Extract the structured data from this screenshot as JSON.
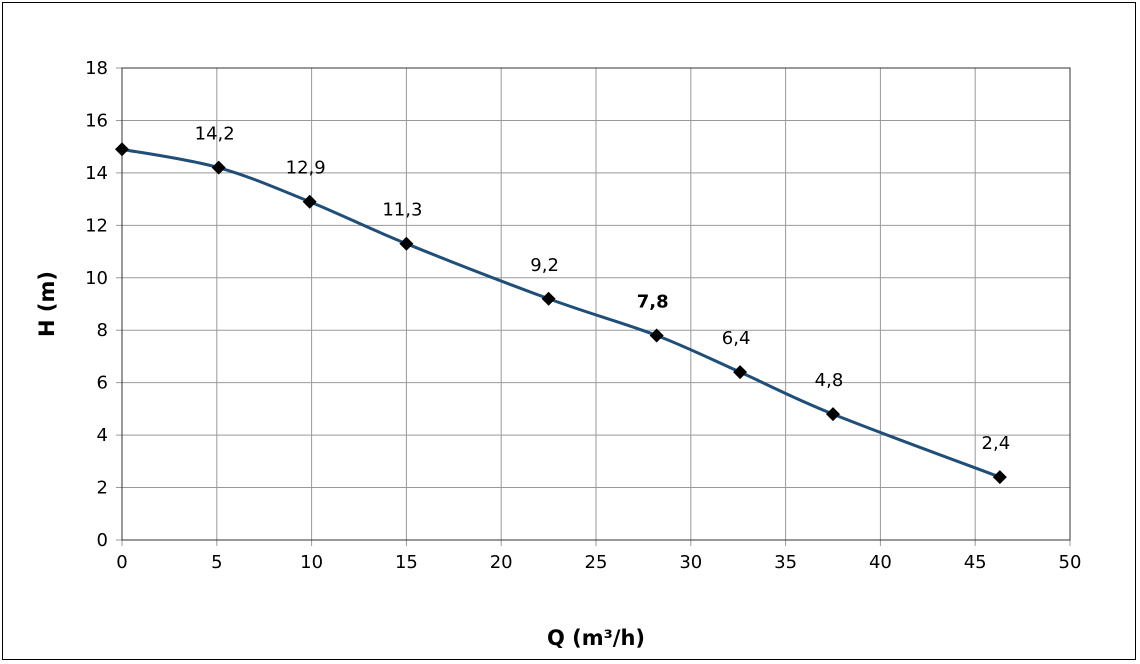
{
  "chart_data": {
    "type": "line",
    "title": "",
    "xlabel": "Q (m³/h)",
    "ylabel": "H (m)",
    "xlim": [
      0,
      50
    ],
    "ylim": [
      0,
      18
    ],
    "x_ticks": [
      "0",
      "5",
      "10",
      "15",
      "20",
      "25",
      "30",
      "35",
      "40",
      "45",
      "50"
    ],
    "y_ticks": [
      "0",
      "2",
      "4",
      "6",
      "8",
      "10",
      "12",
      "14",
      "16",
      "18"
    ],
    "grid": true,
    "legend": "none",
    "colors": {
      "line": "#1f4e79",
      "marker": "#000000",
      "grid": "#999999"
    },
    "series": [
      {
        "marker": "diamond",
        "x": [
          0,
          5.1,
          9.9,
          15.0,
          22.5,
          28.2,
          32.6,
          37.5,
          46.3
        ],
        "y": [
          14.9,
          14.2,
          12.9,
          11.3,
          9.2,
          7.8,
          6.4,
          4.8,
          2.4
        ],
        "labels": [
          "",
          "14,2",
          "12,9",
          "11,3",
          "9,2",
          "7,8",
          "6,4",
          "4,8",
          "2,4"
        ],
        "bold_label_index": 5
      }
    ]
  }
}
